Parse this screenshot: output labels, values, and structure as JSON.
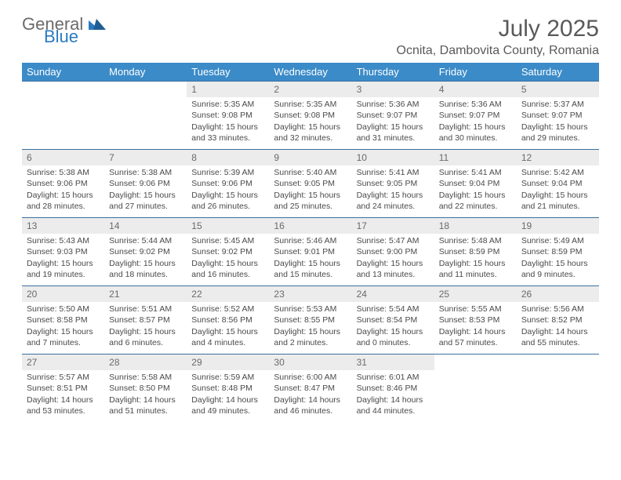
{
  "logo": {
    "line1": "General",
    "line2": "Blue"
  },
  "title": "July 2025",
  "location": "Ocnita, Dambovita County, Romania",
  "colors": {
    "header_bg": "#3b8bc8",
    "header_text": "#ffffff",
    "week_border": "#3b6fa0",
    "daynum_bg": "#ececec",
    "text": "#4a4a4a",
    "logo_gray": "#6b6b6b",
    "logo_blue": "#2a7ac0"
  },
  "weekdays": [
    "Sunday",
    "Monday",
    "Tuesday",
    "Wednesday",
    "Thursday",
    "Friday",
    "Saturday"
  ],
  "weeks": [
    [
      null,
      null,
      {
        "n": "1",
        "sr": "5:35 AM",
        "ss": "9:08 PM",
        "dl": "15 hours and 33 minutes."
      },
      {
        "n": "2",
        "sr": "5:35 AM",
        "ss": "9:08 PM",
        "dl": "15 hours and 32 minutes."
      },
      {
        "n": "3",
        "sr": "5:36 AM",
        "ss": "9:07 PM",
        "dl": "15 hours and 31 minutes."
      },
      {
        "n": "4",
        "sr": "5:36 AM",
        "ss": "9:07 PM",
        "dl": "15 hours and 30 minutes."
      },
      {
        "n": "5",
        "sr": "5:37 AM",
        "ss": "9:07 PM",
        "dl": "15 hours and 29 minutes."
      }
    ],
    [
      {
        "n": "6",
        "sr": "5:38 AM",
        "ss": "9:06 PM",
        "dl": "15 hours and 28 minutes."
      },
      {
        "n": "7",
        "sr": "5:38 AM",
        "ss": "9:06 PM",
        "dl": "15 hours and 27 minutes."
      },
      {
        "n": "8",
        "sr": "5:39 AM",
        "ss": "9:06 PM",
        "dl": "15 hours and 26 minutes."
      },
      {
        "n": "9",
        "sr": "5:40 AM",
        "ss": "9:05 PM",
        "dl": "15 hours and 25 minutes."
      },
      {
        "n": "10",
        "sr": "5:41 AM",
        "ss": "9:05 PM",
        "dl": "15 hours and 24 minutes."
      },
      {
        "n": "11",
        "sr": "5:41 AM",
        "ss": "9:04 PM",
        "dl": "15 hours and 22 minutes."
      },
      {
        "n": "12",
        "sr": "5:42 AM",
        "ss": "9:04 PM",
        "dl": "15 hours and 21 minutes."
      }
    ],
    [
      {
        "n": "13",
        "sr": "5:43 AM",
        "ss": "9:03 PM",
        "dl": "15 hours and 19 minutes."
      },
      {
        "n": "14",
        "sr": "5:44 AM",
        "ss": "9:02 PM",
        "dl": "15 hours and 18 minutes."
      },
      {
        "n": "15",
        "sr": "5:45 AM",
        "ss": "9:02 PM",
        "dl": "15 hours and 16 minutes."
      },
      {
        "n": "16",
        "sr": "5:46 AM",
        "ss": "9:01 PM",
        "dl": "15 hours and 15 minutes."
      },
      {
        "n": "17",
        "sr": "5:47 AM",
        "ss": "9:00 PM",
        "dl": "15 hours and 13 minutes."
      },
      {
        "n": "18",
        "sr": "5:48 AM",
        "ss": "8:59 PM",
        "dl": "15 hours and 11 minutes."
      },
      {
        "n": "19",
        "sr": "5:49 AM",
        "ss": "8:59 PM",
        "dl": "15 hours and 9 minutes."
      }
    ],
    [
      {
        "n": "20",
        "sr": "5:50 AM",
        "ss": "8:58 PM",
        "dl": "15 hours and 7 minutes."
      },
      {
        "n": "21",
        "sr": "5:51 AM",
        "ss": "8:57 PM",
        "dl": "15 hours and 6 minutes."
      },
      {
        "n": "22",
        "sr": "5:52 AM",
        "ss": "8:56 PM",
        "dl": "15 hours and 4 minutes."
      },
      {
        "n": "23",
        "sr": "5:53 AM",
        "ss": "8:55 PM",
        "dl": "15 hours and 2 minutes."
      },
      {
        "n": "24",
        "sr": "5:54 AM",
        "ss": "8:54 PM",
        "dl": "15 hours and 0 minutes."
      },
      {
        "n": "25",
        "sr": "5:55 AM",
        "ss": "8:53 PM",
        "dl": "14 hours and 57 minutes."
      },
      {
        "n": "26",
        "sr": "5:56 AM",
        "ss": "8:52 PM",
        "dl": "14 hours and 55 minutes."
      }
    ],
    [
      {
        "n": "27",
        "sr": "5:57 AM",
        "ss": "8:51 PM",
        "dl": "14 hours and 53 minutes."
      },
      {
        "n": "28",
        "sr": "5:58 AM",
        "ss": "8:50 PM",
        "dl": "14 hours and 51 minutes."
      },
      {
        "n": "29",
        "sr": "5:59 AM",
        "ss": "8:48 PM",
        "dl": "14 hours and 49 minutes."
      },
      {
        "n": "30",
        "sr": "6:00 AM",
        "ss": "8:47 PM",
        "dl": "14 hours and 46 minutes."
      },
      {
        "n": "31",
        "sr": "6:01 AM",
        "ss": "8:46 PM",
        "dl": "14 hours and 44 minutes."
      },
      null,
      null
    ]
  ],
  "labels": {
    "sunrise": "Sunrise:",
    "sunset": "Sunset:",
    "daylight": "Daylight:"
  }
}
